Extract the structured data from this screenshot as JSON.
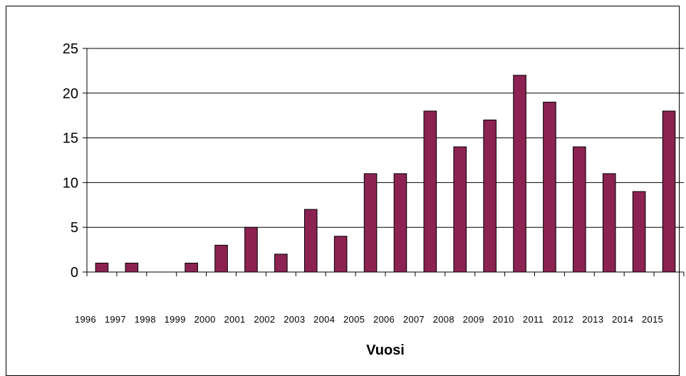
{
  "chart_data": {
    "type": "bar",
    "title": "",
    "xlabel": "Vuosi",
    "ylabel": "",
    "categories": [
      "1996",
      "1997",
      "1998",
      "1999",
      "2000",
      "2001",
      "2002",
      "2003",
      "2004",
      "2005",
      "2006",
      "2007",
      "2008",
      "2009",
      "2010",
      "2011",
      "2012",
      "2013",
      "2014",
      "2015"
    ],
    "values": [
      1,
      1,
      0,
      1,
      3,
      5,
      2,
      7,
      4,
      11,
      11,
      18,
      14,
      17,
      22,
      19,
      14,
      11,
      9,
      18
    ],
    "ylim": [
      0,
      25
    ],
    "yticks": [
      "0",
      "5",
      "10",
      "15",
      "20",
      "25"
    ],
    "grid": true,
    "legend": "none",
    "colors": {
      "bar": "#8B2252",
      "bar_stroke": "#000000",
      "grid": "#000000"
    }
  }
}
